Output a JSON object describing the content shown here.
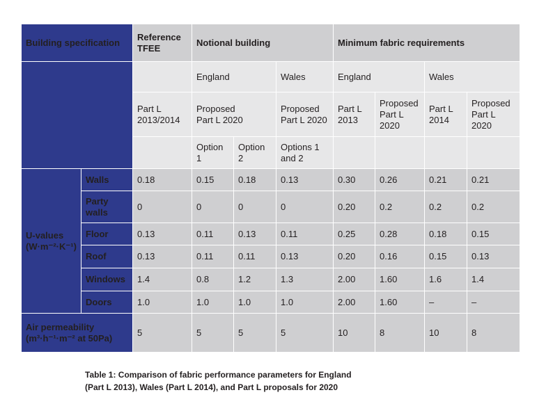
{
  "table": {
    "header": {
      "building_spec": "Building specification",
      "reference_tfee": [
        "Reference",
        "TFEE"
      ],
      "notional_building": "Notional building",
      "minimum_fabric": "Minimum fabric requirements"
    },
    "regions": {
      "england": "England",
      "wales": "Wales",
      "min_england": "England",
      "min_wales": "Wales"
    },
    "part_l": {
      "ref": [
        "Part L",
        "2013/2014"
      ],
      "notional_england": [
        "Proposed",
        "Part L 2020"
      ],
      "notional_wales": [
        "Proposed",
        "Part L 2020"
      ],
      "min_eng_2013": [
        "Part L",
        "2013"
      ],
      "min_eng_proposed": [
        "Proposed",
        "Part L",
        "2020"
      ],
      "min_wal_2014": [
        "Part L",
        "2014"
      ],
      "min_wal_proposed": [
        "Proposed",
        "Part L",
        "2020"
      ]
    },
    "options": {
      "opt1": [
        "Option",
        "1"
      ],
      "opt2": [
        "Option",
        "2"
      ],
      "opt12": [
        "Options 1",
        "and 2"
      ]
    },
    "uvalues_label": [
      "U-values",
      "(W·m⁻²·K⁻¹)"
    ],
    "rows": [
      {
        "label": [
          "Walls"
        ],
        "values": [
          "0.18",
          "0.15",
          "0.18",
          "0.13",
          "0.30",
          "0.26",
          "0.21",
          "0.21"
        ]
      },
      {
        "label": [
          "Party",
          "walls"
        ],
        "values": [
          "0",
          "0",
          "0",
          "0",
          "0.20",
          "0.2",
          "0.2",
          "0.2"
        ]
      },
      {
        "label": [
          "Floor"
        ],
        "values": [
          "0.13",
          "0.11",
          "0.13",
          "0.11",
          "0.25",
          "0.28",
          "0.18",
          "0.15"
        ]
      },
      {
        "label": [
          "Roof"
        ],
        "values": [
          "0.13",
          "0.11",
          "0.11",
          "0.13",
          "0.20",
          "0.16",
          "0.15",
          "0.13"
        ]
      },
      {
        "label": [
          "Windows"
        ],
        "values": [
          "1.4",
          "0.8",
          "1.2",
          "1.3",
          "2.00",
          "1.60",
          "1.6",
          "1.4"
        ]
      },
      {
        "label": [
          "Doors"
        ],
        "values": [
          "1.0",
          "1.0",
          "1.0",
          "1.0",
          "2.00",
          "1.60",
          "–",
          "–"
        ]
      }
    ],
    "air": {
      "label": [
        "Air permeability",
        "(m³·h⁻¹·m⁻² at 50Pa)"
      ],
      "values": [
        "5",
        "5",
        "5",
        "5",
        "10",
        "8",
        "10",
        "8"
      ]
    }
  },
  "caption": [
    "Table 1: Comparison of fabric performance parameters for England",
    "(Part L 2013), Wales (Part L 2014), and Part L proposals for 2020"
  ]
}
